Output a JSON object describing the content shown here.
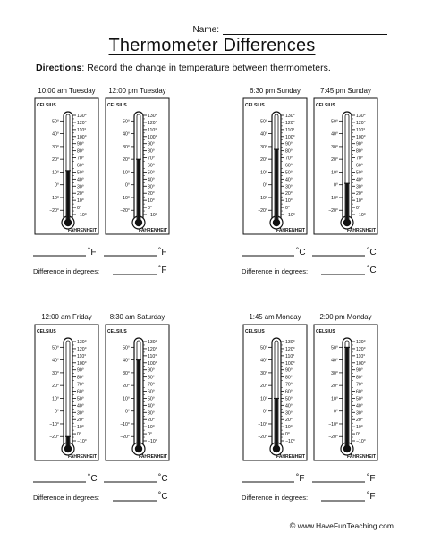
{
  "header": {
    "name_label": "Name:"
  },
  "title": "Thermometer Differences",
  "directions": {
    "label": "Directions",
    "text": ": Record the change in temperature between thermometers."
  },
  "scale": {
    "celsius_label": "CELSIUS",
    "fahrenheit_label": "FAHRENHEIT",
    "celsius_ticks": [
      "50°",
      "40°",
      "30°",
      "20°",
      "10°",
      "0°",
      "−10°",
      "−20°"
    ],
    "fahrenheit_ticks": [
      "130°",
      "120°",
      "110°",
      "100°",
      "90°",
      "80°",
      "70°",
      "60°",
      "50°",
      "40°",
      "30°",
      "20°",
      "10°",
      "0°",
      "−10°"
    ]
  },
  "difference_label": "Difference in degrees:",
  "groups": [
    {
      "thermometers": [
        {
          "time": "10:00 am Tuesday",
          "reading_f": 52
        },
        {
          "time": "12:00 pm Tuesday",
          "reading_f": 68
        }
      ],
      "unit": "˚F",
      "diff_unit": "˚F"
    },
    {
      "thermometers": [
        {
          "time": "6:30 pm Sunday",
          "reading_f": 82
        },
        {
          "time": "7:45 pm Sunday",
          "reading_f": 34
        }
      ],
      "unit": "˚C",
      "diff_unit": "˚C"
    },
    {
      "thermometers": [
        {
          "time": "12:00 am Friday",
          "reading_f": -4
        },
        {
          "time": "8:30 am Saturday",
          "reading_f": 104
        }
      ],
      "unit": "˚C",
      "diff_unit": "˚C"
    },
    {
      "thermometers": [
        {
          "time": "1:45 am Monday",
          "reading_f": 50
        },
        {
          "time": "2:00 pm Monday",
          "reading_f": 122
        }
      ],
      "unit": "˚F",
      "diff_unit": "˚F"
    }
  ],
  "footer": {
    "copyright": "©",
    "site": "www.HaveFunTeaching.com"
  }
}
